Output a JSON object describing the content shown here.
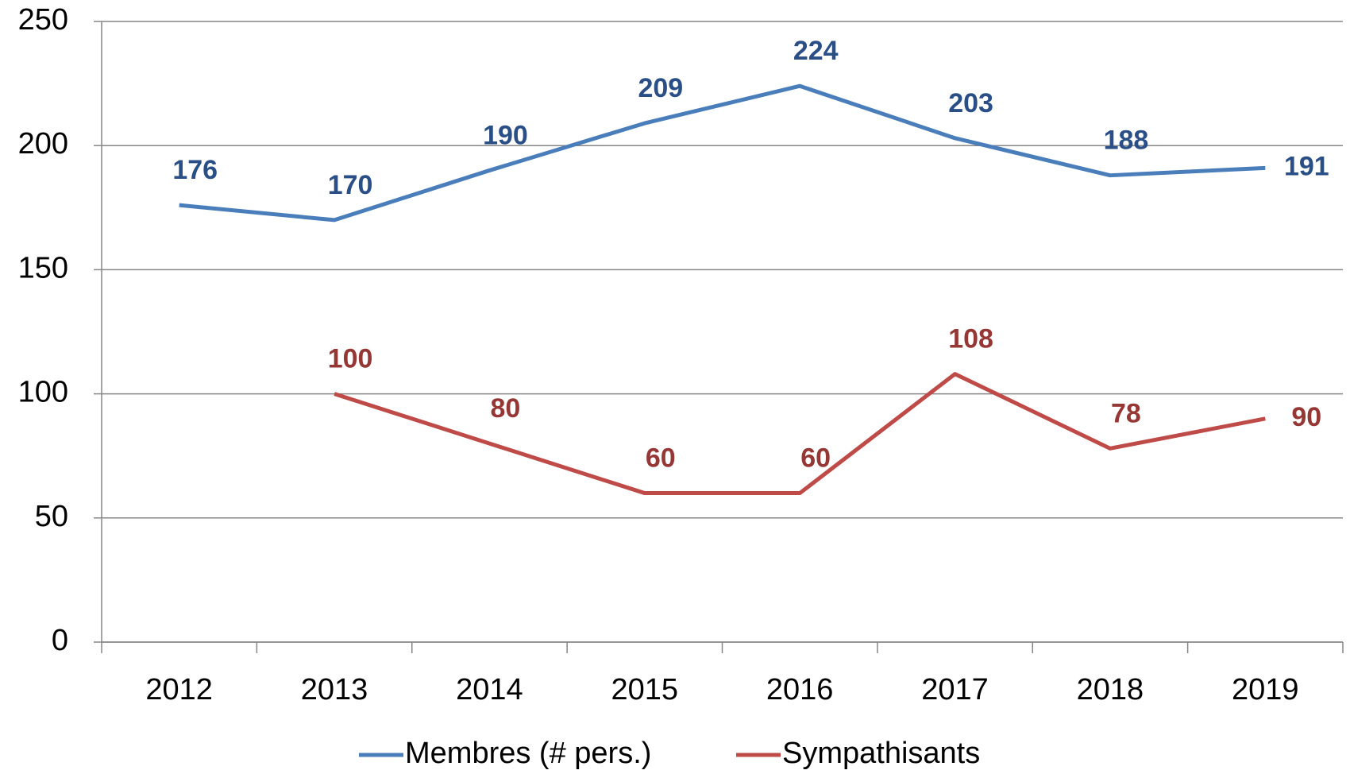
{
  "chart_data": {
    "type": "line",
    "categories": [
      "2012",
      "2013",
      "2014",
      "2015",
      "2016",
      "2017",
      "2018",
      "2019"
    ],
    "series": [
      {
        "name": "Membres (# pers.)",
        "color": "#4a7ebb",
        "label_color": "#2a4f86",
        "values": [
          176,
          170,
          190,
          209,
          224,
          203,
          188,
          191
        ]
      },
      {
        "name": "Sympathisants",
        "color": "#be4b48",
        "label_color": "#953735",
        "values": [
          null,
          100,
          80,
          60,
          60,
          108,
          78,
          90
        ]
      }
    ],
    "ylim": [
      0,
      250
    ],
    "yticks": [
      0,
      50,
      100,
      150,
      200,
      250
    ],
    "grid": true,
    "legend": "bottom"
  }
}
